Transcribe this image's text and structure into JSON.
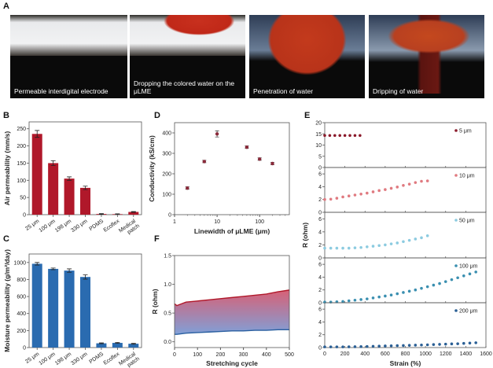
{
  "panels": {
    "a": "A",
    "b": "B",
    "c": "C",
    "d": "D",
    "e": "E",
    "f": "F"
  },
  "photos": [
    {
      "caption": "Permeable interdigital electrode"
    },
    {
      "caption": "Dropping the colored water on the μLME"
    },
    {
      "caption": "Penetration of water"
    },
    {
      "caption": "Dripping of water"
    }
  ],
  "chart_data": [
    {
      "id": "B",
      "type": "bar",
      "ylabel": "Air permeability (mm/s)",
      "ylim": [
        0,
        270
      ],
      "yticks": [
        0,
        50,
        100,
        150,
        200,
        250
      ],
      "categories": [
        "25 μm",
        "100 μm",
        "198 μm",
        "330 μm",
        "PDMS",
        "Ecoflex",
        "Medical patch"
      ],
      "values": [
        235,
        150,
        105,
        78,
        2,
        1.5,
        8
      ],
      "errors": [
        10,
        7,
        5,
        5,
        1,
        1,
        1
      ],
      "color": "#b0182a"
    },
    {
      "id": "C",
      "type": "bar",
      "ylabel": "Moisture permeability (g/m²/day)",
      "ylim": [
        0,
        1100
      ],
      "yticks": [
        0,
        200,
        400,
        600,
        800,
        1000
      ],
      "categories": [
        "25 μm",
        "100 μm",
        "198 μm",
        "330 μm",
        "PDMS",
        "Ecoflex",
        "Medical patch"
      ],
      "values": [
        985,
        925,
        905,
        830,
        50,
        55,
        45
      ],
      "errors": [
        15,
        10,
        20,
        25,
        5,
        5,
        5
      ],
      "color": "#2a6bb0"
    },
    {
      "id": "D",
      "type": "scatter",
      "xlabel": "Linewidth of μLME (μm)",
      "ylabel": "Conductivity (kS/cm)",
      "xscale": "log",
      "xlim": [
        1,
        500
      ],
      "ylim": [
        0,
        450
      ],
      "xticks": [
        1,
        10,
        100
      ],
      "yticks": [
        0,
        100,
        200,
        300,
        400
      ],
      "x": [
        2,
        5,
        10,
        50,
        100,
        200
      ],
      "y": [
        130,
        260,
        395,
        330,
        272,
        250
      ],
      "errors": [
        6,
        6,
        15,
        6,
        6,
        6
      ],
      "color": "#8a2a3a"
    },
    {
      "id": "E",
      "type": "scatter",
      "xlabel": "Strain (%)",
      "ylabel": "R (ohm)",
      "xlim": [
        0,
        1600
      ],
      "xticks": [
        0,
        200,
        400,
        600,
        800,
        1000,
        1200,
        1400,
        1600
      ],
      "subplots": [
        {
          "name": "5 μm",
          "color": "#8b1a2b",
          "ylim": [
            0,
            20
          ],
          "yticks": [
            0,
            5,
            10,
            15,
            20
          ],
          "x": [
            0,
            50,
            100,
            150,
            200,
            250,
            300,
            350
          ],
          "y": [
            14.3,
            14.3,
            14.3,
            14.3,
            14.3,
            14.3,
            14.3,
            14.3
          ]
        },
        {
          "name": "10 μm",
          "color": "#e07a80",
          "ylim": [
            0,
            7
          ],
          "yticks": [
            0,
            2,
            4,
            6
          ],
          "x": [
            0,
            60,
            120,
            180,
            240,
            300,
            360,
            420,
            480,
            540,
            600,
            660,
            720,
            780,
            840,
            900,
            960,
            1020
          ],
          "y": [
            2.0,
            2.05,
            2.2,
            2.4,
            2.55,
            2.7,
            2.85,
            3.0,
            3.2,
            3.4,
            3.55,
            3.75,
            3.95,
            4.2,
            4.4,
            4.65,
            4.85,
            4.9
          ]
        },
        {
          "name": "50 μm",
          "color": "#8ccbe0",
          "ylim": [
            0,
            7
          ],
          "yticks": [
            0,
            2,
            4,
            6
          ],
          "x": [
            0,
            60,
            120,
            180,
            240,
            300,
            360,
            420,
            480,
            540,
            600,
            660,
            720,
            780,
            840,
            900,
            960,
            1020
          ],
          "y": [
            1.5,
            1.5,
            1.5,
            1.5,
            1.5,
            1.55,
            1.6,
            1.7,
            1.8,
            1.9,
            2.0,
            2.15,
            2.3,
            2.5,
            2.7,
            2.9,
            3.1,
            3.4
          ]
        },
        {
          "name": "100 μm",
          "color": "#3a8fb0",
          "ylim": [
            0,
            7
          ],
          "yticks": [
            0,
            2,
            4,
            6
          ],
          "x": [
            0,
            60,
            120,
            180,
            240,
            300,
            360,
            420,
            480,
            540,
            600,
            660,
            720,
            780,
            840,
            900,
            960,
            1020,
            1080,
            1140,
            1200,
            1260,
            1320,
            1380,
            1440,
            1500
          ],
          "y": [
            0.1,
            0.1,
            0.15,
            0.2,
            0.3,
            0.4,
            0.5,
            0.6,
            0.75,
            0.9,
            1.05,
            1.2,
            1.4,
            1.6,
            1.8,
            2.0,
            2.25,
            2.5,
            2.75,
            3.0,
            3.3,
            3.6,
            3.9,
            4.2,
            4.5,
            4.8
          ]
        },
        {
          "name": "200 μm",
          "color": "#2a5f95",
          "ylim": [
            0,
            7
          ],
          "yticks": [
            0,
            2,
            4,
            6
          ],
          "x": [
            0,
            60,
            120,
            180,
            240,
            300,
            360,
            420,
            480,
            540,
            600,
            660,
            720,
            780,
            840,
            900,
            960,
            1020,
            1080,
            1140,
            1200,
            1260,
            1320,
            1380,
            1440,
            1500
          ],
          "y": [
            0.1,
            0.1,
            0.1,
            0.1,
            0.12,
            0.13,
            0.15,
            0.17,
            0.2,
            0.22,
            0.25,
            0.27,
            0.3,
            0.32,
            0.35,
            0.38,
            0.4,
            0.43,
            0.47,
            0.5,
            0.53,
            0.57,
            0.6,
            0.65,
            0.7,
            0.75
          ]
        }
      ]
    },
    {
      "id": "F",
      "type": "area",
      "xlabel": "Stretching cycle",
      "ylabel": "R (ohm)",
      "xlim": [
        0,
        500
      ],
      "ylim": [
        -0.1,
        1.5
      ],
      "xticks": [
        0,
        100,
        200,
        300,
        400,
        500
      ],
      "yticks": [
        0.0,
        0.5,
        1.0,
        1.5
      ],
      "x": [
        0,
        10,
        50,
        100,
        150,
        200,
        250,
        300,
        350,
        400,
        450,
        500
      ],
      "series": [
        {
          "color": "#b0182a",
          "y": [
            0.66,
            0.63,
            0.69,
            0.71,
            0.73,
            0.75,
            0.77,
            0.79,
            0.81,
            0.83,
            0.87,
            0.9
          ]
        },
        {
          "color": "#2a5fa0",
          "y": [
            0.13,
            0.13,
            0.15,
            0.16,
            0.17,
            0.18,
            0.19,
            0.19,
            0.2,
            0.2,
            0.21,
            0.21
          ]
        }
      ]
    }
  ]
}
